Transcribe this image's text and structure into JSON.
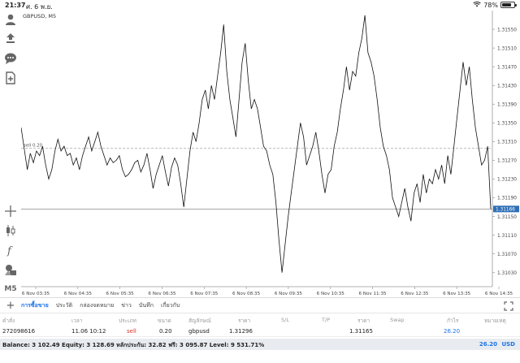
{
  "status_bar": {
    "time": "21:37",
    "date": "ศ. 6 พ.ย.",
    "battery": "78%",
    "battery_level": 0.78
  },
  "left_toolbar": {
    "timeframe": "M5"
  },
  "chart": {
    "symbol_label": "GBPUSD, M5",
    "sell_line_label": "sell 0.20",
    "current_price_label": "1.31166",
    "colors": {
      "line": "#111111",
      "current_price_box": "#2f6fb5",
      "grid": "#dddddd"
    }
  },
  "chart_data": {
    "type": "line",
    "series": [
      {
        "values": [
          1.3134,
          1.31295,
          1.3125,
          1.31285,
          1.31265,
          1.3129,
          1.3128,
          1.313,
          1.3126,
          1.3123,
          1.3125,
          1.3129,
          1.31315,
          1.3129,
          1.313,
          1.3128,
          1.31285,
          1.3126,
          1.31275,
          1.3125,
          1.3128,
          1.313,
          1.3132,
          1.3129,
          1.3131,
          1.3133,
          1.313,
          1.3128,
          1.3126,
          1.31275,
          1.31265,
          1.3127,
          1.3128,
          1.3125,
          1.31235,
          1.3124,
          1.3125,
          1.31265,
          1.3127,
          1.31245,
          1.3126,
          1.31285,
          1.3125,
          1.3121,
          1.3124,
          1.3126,
          1.3128,
          1.31245,
          1.31215,
          1.31255,
          1.31275,
          1.3126,
          1.3122,
          1.3117,
          1.3123,
          1.3129,
          1.3133,
          1.3131,
          1.3135,
          1.314,
          1.3142,
          1.3138,
          1.3143,
          1.314,
          1.3145,
          1.315,
          1.3156,
          1.3146,
          1.314,
          1.3136,
          1.3132,
          1.314,
          1.3148,
          1.3152,
          1.3144,
          1.3138,
          1.314,
          1.3138,
          1.3134,
          1.313,
          1.3129,
          1.3126,
          1.3124,
          1.3118,
          1.311,
          1.3103,
          1.3109,
          1.3115,
          1.312,
          1.3125,
          1.313,
          1.3135,
          1.3132,
          1.3126,
          1.3128,
          1.313,
          1.3133,
          1.3129,
          1.3124,
          1.312,
          1.3124,
          1.3125,
          1.313,
          1.3133,
          1.3138,
          1.3142,
          1.3147,
          1.3142,
          1.3146,
          1.3145,
          1.315,
          1.3153,
          1.3158,
          1.315,
          1.3148,
          1.3145,
          1.314,
          1.3134,
          1.313,
          1.3128,
          1.3125,
          1.3119,
          1.3117,
          1.3115,
          1.3118,
          1.3121,
          1.3117,
          1.3114,
          1.312,
          1.3122,
          1.3118,
          1.3124,
          1.312,
          1.3123,
          1.3122,
          1.3125,
          1.3123,
          1.3126,
          1.3122,
          1.3128,
          1.3124,
          1.313,
          1.3136,
          1.3142,
          1.3148,
          1.3143,
          1.3147,
          1.314,
          1.3134,
          1.313,
          1.3126,
          1.3127,
          1.313,
          1.31166
        ],
        "color": "#111111"
      }
    ],
    "ylim": [
      1.31,
      1.3159
    ],
    "y_ticks": [
      "1.31550",
      "1.31510",
      "1.31470",
      "1.31430",
      "1.31390",
      "1.31350",
      "1.31310",
      "1.31270",
      "1.31230",
      "1.31190",
      "1.31150",
      "1.31110",
      "1.31070",
      "1.31030"
    ],
    "y_tick_values": [
      1.3155,
      1.3151,
      1.3147,
      1.3143,
      1.3139,
      1.3135,
      1.3131,
      1.3127,
      1.3123,
      1.3119,
      1.3115,
      1.3111,
      1.3107,
      1.3103
    ],
    "x_ticks": [
      "6 Nov 03:35",
      "6 Nov 04:35",
      "6 Nov 05:35",
      "6 Nov 06:35",
      "6 Nov 07:35",
      "6 Nov 08:35",
      "6 Nov 09:35",
      "6 Nov 10:35",
      "6 Nov 11:35",
      "6 Nov 12:35",
      "6 Nov 13:35",
      "6 Nov 14:35"
    ],
    "sell_level": 1.31296,
    "current_price": 1.31166,
    "grid": false
  },
  "tabs": [
    {
      "label": "การซื้อขาย",
      "active": true
    },
    {
      "label": "ประวัติ",
      "active": false
    },
    {
      "label": "กล่องจดหมาย",
      "active": false
    },
    {
      "label": "ข่าว",
      "active": false
    },
    {
      "label": "บันทึก",
      "active": false
    },
    {
      "label": "เกี่ยวกับ",
      "active": false
    }
  ],
  "table": {
    "headers": {
      "order": "คำสั่ง",
      "time": "เวลา",
      "type": "ประเภท",
      "volume": "ขนาด",
      "symbol": "สัญลักษณ์",
      "price": "ราคา",
      "sl": "S/L",
      "tp": "T/P",
      "price2": "ราคา",
      "swap": "Swap",
      "profit": "กำไร",
      "comment": "หมายเหตุ"
    },
    "row": {
      "order": "272098616",
      "time": "11.06 10:12",
      "type": "sell",
      "volume": "0.20",
      "symbol": "gbpusd",
      "price": "1.31296",
      "price2": "1.31165",
      "profit": "26.20"
    }
  },
  "footer": {
    "balance_text": "Balance: 3 102.49 Equity: 3 128.69 หลักประกัน: 32.82 ฟรี: 3 095.87 Level: 9 531.71%",
    "total": "26.20",
    "currency": "USD"
  }
}
